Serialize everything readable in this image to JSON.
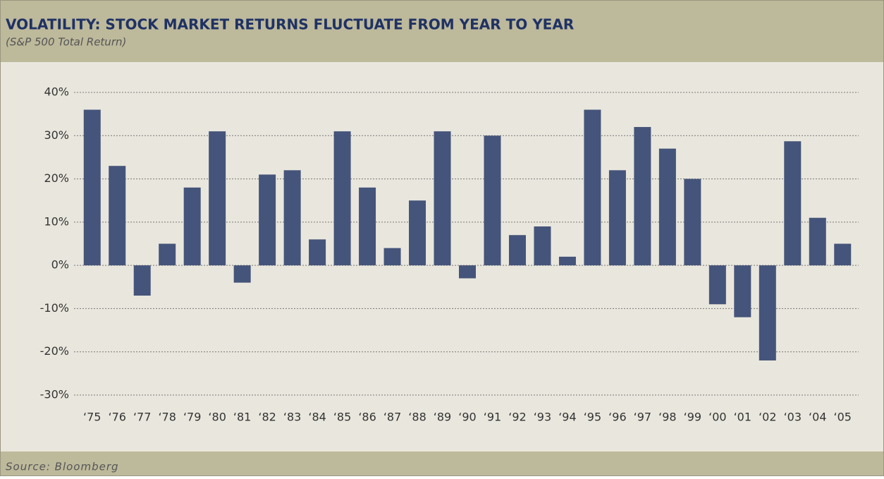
{
  "chart_data": {
    "type": "bar",
    "title": "VOLATILITY: STOCK MARKET RETURNS FLUCTUATE FROM YEAR TO YEAR",
    "subtitle": "(S&P 500 Total Return)",
    "source": "Source: Bloomberg",
    "categories": [
      "‘75",
      "‘76",
      "‘77",
      "‘78",
      "‘79",
      "‘80",
      "‘81",
      "‘82",
      "‘83",
      "‘84",
      "‘85",
      "‘86",
      "‘87",
      "‘88",
      "‘89",
      "‘90",
      "‘91",
      "‘92",
      "‘93",
      "‘94",
      "‘95",
      "‘96",
      "‘97",
      "‘98",
      "‘99",
      "‘00",
      "‘01",
      "‘02",
      "‘03",
      "‘04",
      "‘05"
    ],
    "values": [
      36,
      23,
      -7,
      5,
      18,
      31,
      -4,
      21,
      22,
      6,
      31,
      18,
      4,
      15,
      31,
      -3,
      30,
      7,
      9,
      2,
      36,
      22,
      32,
      27,
      20,
      -9,
      -12,
      -22,
      28.7,
      11,
      5
    ],
    "color": "#45547a",
    "ylim": [
      -30,
      40
    ],
    "yticks": [
      {
        "value": -30,
        "label": "-30%"
      },
      {
        "value": -20,
        "label": "-20%"
      },
      {
        "value": -10,
        "label": "-10%"
      },
      {
        "value": 0,
        "label": "0%"
      },
      {
        "value": 10,
        "label": "10%"
      },
      {
        "value": 20,
        "label": "20%"
      },
      {
        "value": 30,
        "label": "30%"
      },
      {
        "value": 40,
        "label": "40%"
      }
    ],
    "grid": true
  }
}
